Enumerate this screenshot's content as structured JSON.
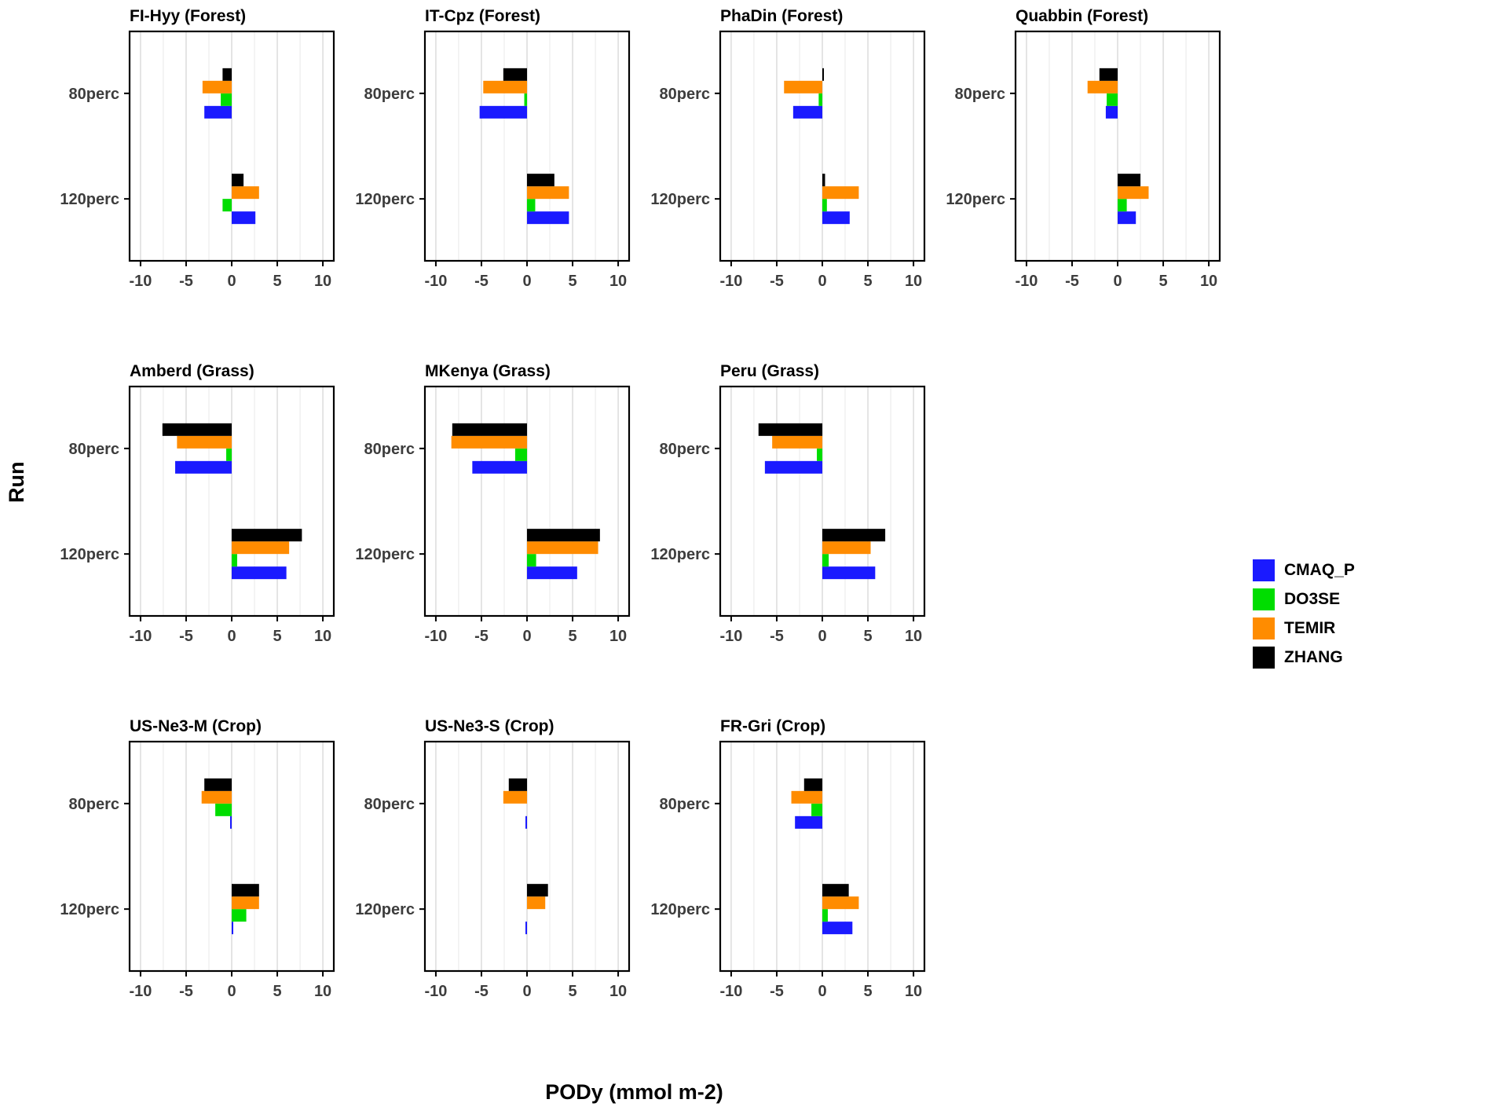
{
  "figure": {
    "x_axis_title": "PODy (mmol m-2)",
    "y_axis_title": "Run"
  },
  "colors": {
    "CMAQ_P": "#1a1aff",
    "DO3SE": "#00dd00",
    "TEMIR": "#ff8c00",
    "ZHANG": "#000000"
  },
  "legend": {
    "position": "right",
    "items": [
      {
        "label": "CMAQ_P",
        "color": "#1a1aff"
      },
      {
        "label": "DO3SE",
        "color": "#00dd00"
      },
      {
        "label": "TEMIR",
        "color": "#ff8c00"
      },
      {
        "label": "ZHANG",
        "color": "#000000"
      }
    ]
  },
  "axis": {
    "x_ticks": [
      -10,
      -5,
      0,
      5,
      10
    ],
    "x_minor_ticks": [
      -7.5,
      -2.5,
      2.5,
      7.5
    ],
    "x_range": [
      -11.2,
      11.2
    ],
    "categories": [
      "80perc",
      "120perc"
    ]
  },
  "chart_data": [
    {
      "type": "bar",
      "orientation": "horizontal",
      "title": "FI-Hyy (Forest)",
      "categories": [
        "80perc",
        "120perc"
      ],
      "series": [
        {
          "name": "CMAQ_P",
          "values": [
            -3.0,
            2.6
          ]
        },
        {
          "name": "DO3SE",
          "values": [
            -1.2,
            -1.0
          ]
        },
        {
          "name": "TEMIR",
          "values": [
            -3.2,
            3.0
          ]
        },
        {
          "name": "ZHANG",
          "values": [
            -1.0,
            1.3
          ]
        }
      ]
    },
    {
      "type": "bar",
      "orientation": "horizontal",
      "title": "IT-Cpz (Forest)",
      "categories": [
        "80perc",
        "120perc"
      ],
      "series": [
        {
          "name": "CMAQ_P",
          "values": [
            -5.2,
            4.6
          ]
        },
        {
          "name": "DO3SE",
          "values": [
            -0.3,
            0.9
          ]
        },
        {
          "name": "TEMIR",
          "values": [
            -4.8,
            4.6
          ]
        },
        {
          "name": "ZHANG",
          "values": [
            -2.6,
            3.0
          ]
        }
      ]
    },
    {
      "type": "bar",
      "orientation": "horizontal",
      "title": "PhaDin (Forest)",
      "categories": [
        "80perc",
        "120perc"
      ],
      "series": [
        {
          "name": "CMAQ_P",
          "values": [
            -3.2,
            3.0
          ]
        },
        {
          "name": "DO3SE",
          "values": [
            -0.4,
            0.5
          ]
        },
        {
          "name": "TEMIR",
          "values": [
            -4.2,
            4.0
          ]
        },
        {
          "name": "ZHANG",
          "values": [
            0.15,
            0.3
          ]
        }
      ]
    },
    {
      "type": "bar",
      "orientation": "horizontal",
      "title": "Quabbin (Forest)",
      "categories": [
        "80perc",
        "120perc"
      ],
      "series": [
        {
          "name": "CMAQ_P",
          "values": [
            -1.3,
            2.0
          ]
        },
        {
          "name": "DO3SE",
          "values": [
            -1.2,
            1.0
          ]
        },
        {
          "name": "TEMIR",
          "values": [
            -3.3,
            3.4
          ]
        },
        {
          "name": "ZHANG",
          "values": [
            -2.0,
            2.5
          ]
        }
      ]
    },
    {
      "type": "bar",
      "orientation": "horizontal",
      "title": "Amberd (Grass)",
      "categories": [
        "80perc",
        "120perc"
      ],
      "series": [
        {
          "name": "CMAQ_P",
          "values": [
            -6.2,
            6.0
          ]
        },
        {
          "name": "DO3SE",
          "values": [
            -0.6,
            0.6
          ]
        },
        {
          "name": "TEMIR",
          "values": [
            -6.0,
            6.3
          ]
        },
        {
          "name": "ZHANG",
          "values": [
            -7.6,
            7.7
          ]
        }
      ]
    },
    {
      "type": "bar",
      "orientation": "horizontal",
      "title": "MKenya (Grass)",
      "categories": [
        "80perc",
        "120perc"
      ],
      "series": [
        {
          "name": "CMAQ_P",
          "values": [
            -6.0,
            5.5
          ]
        },
        {
          "name": "DO3SE",
          "values": [
            -1.3,
            1.0
          ]
        },
        {
          "name": "TEMIR",
          "values": [
            -8.3,
            7.8
          ]
        },
        {
          "name": "ZHANG",
          "values": [
            -8.2,
            8.0
          ]
        }
      ]
    },
    {
      "type": "bar",
      "orientation": "horizontal",
      "title": "Peru (Grass)",
      "categories": [
        "80perc",
        "120perc"
      ],
      "series": [
        {
          "name": "CMAQ_P",
          "values": [
            -6.3,
            5.8
          ]
        },
        {
          "name": "DO3SE",
          "values": [
            -0.6,
            0.7
          ]
        },
        {
          "name": "TEMIR",
          "values": [
            -5.5,
            5.3
          ]
        },
        {
          "name": "ZHANG",
          "values": [
            -7.0,
            6.9
          ]
        }
      ]
    },
    {
      "type": "bar",
      "orientation": "horizontal",
      "title": "US-Ne3-M (Crop)",
      "categories": [
        "80perc",
        "120perc"
      ],
      "series": [
        {
          "name": "CMAQ_P",
          "values": [
            -0.15,
            0.15
          ]
        },
        {
          "name": "DO3SE",
          "values": [
            -1.8,
            1.6
          ]
        },
        {
          "name": "TEMIR",
          "values": [
            -3.3,
            3.0
          ]
        },
        {
          "name": "ZHANG",
          "values": [
            -3.0,
            3.0
          ]
        }
      ]
    },
    {
      "type": "bar",
      "orientation": "horizontal",
      "title": "US-Ne3-S (Crop)",
      "categories": [
        "80perc",
        "120perc"
      ],
      "series": [
        {
          "name": "CMAQ_P",
          "values": [
            -0.1,
            -0.15
          ]
        },
        {
          "name": "DO3SE",
          "values": [
            0,
            0
          ]
        },
        {
          "name": "TEMIR",
          "values": [
            -2.6,
            2.0
          ]
        },
        {
          "name": "ZHANG",
          "values": [
            -2.0,
            2.3
          ]
        }
      ]
    },
    {
      "type": "bar",
      "orientation": "horizontal",
      "title": "FR-Gri (Crop)",
      "categories": [
        "80perc",
        "120perc"
      ],
      "series": [
        {
          "name": "CMAQ_P",
          "values": [
            -3.0,
            3.3
          ]
        },
        {
          "name": "DO3SE",
          "values": [
            -1.2,
            0.6
          ]
        },
        {
          "name": "TEMIR",
          "values": [
            -3.4,
            4.0
          ]
        },
        {
          "name": "ZHANG",
          "values": [
            -2.0,
            2.9
          ]
        }
      ]
    }
  ]
}
